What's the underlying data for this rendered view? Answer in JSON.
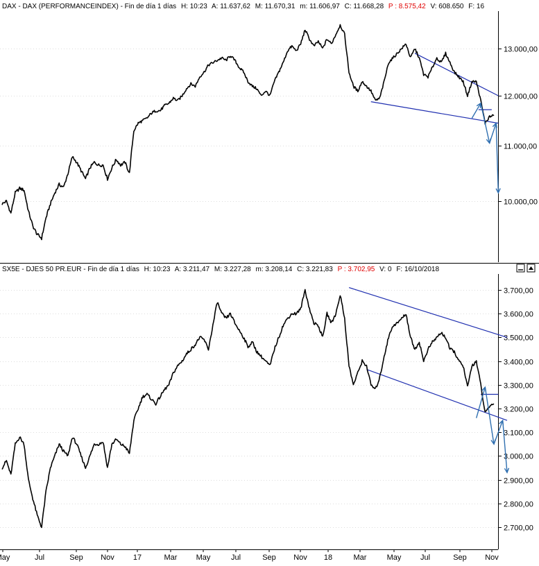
{
  "colors": {
    "price": "#000000",
    "trendline": "#1f2fb0",
    "projection": "#2f6fb0",
    "header_p": "#e00000",
    "grid": "#dcdcdc",
    "axis": "#000000"
  },
  "x_axis": {
    "labels": [
      "May",
      "Jul",
      "Sep",
      "Nov",
      "17",
      "Mar",
      "May",
      "Jul",
      "Sep",
      "Nov",
      "18",
      "Mar",
      "May",
      "Jul",
      "Sep",
      "Nov"
    ]
  },
  "panels": [
    {
      "id": "dax",
      "header": {
        "name": "DAX - DAX (PERFORMANCEINDEX) - Fin de día 1 días",
        "h": "H: 10:23",
        "a": "A: 11.637,62",
        "m_high": "M: 11.670,31",
        "m_low": "m: 11.606,97",
        "c": "C: 11.668,28",
        "p": "P : 8.575,42",
        "v": "V: 608.650",
        "f": "F: 16"
      },
      "window_buttons": [],
      "chart_data": {
        "type": "line",
        "ylim": [
          8950,
          13650
        ],
        "yticks": [
          {
            "value": 13000,
            "label": "13.000,00"
          },
          {
            "value": 12000,
            "label": "12.000,00"
          },
          {
            "value": 11000,
            "label": "11.000,00"
          },
          {
            "value": 10000,
            "label": "10.000,00"
          }
        ],
        "series": [
          {
            "values": [
              9950,
              10000,
              9780,
              10150,
              10230,
              10200,
              9820,
              9550,
              9400,
              9330,
              9700,
              9950,
              10150,
              10300,
              10250,
              10500,
              10800,
              10700,
              10550,
              10400,
              10600,
              10700,
              10650,
              10650,
              10400,
              10600,
              10750,
              10650,
              10700,
              10500,
              11300,
              11450,
              11500,
              11550,
              11650,
              11700,
              11700,
              11800,
              11850,
              11950,
              11900,
              12000,
              12150,
              12250,
              12200,
              12400,
              12500,
              12650,
              12700,
              12750,
              12800,
              12750,
              12850,
              12750,
              12600,
              12500,
              12300,
              12200,
              12150,
              12000,
              12100,
              12000,
              12300,
              12500,
              12700,
              12950,
              13050,
              12950,
              13100,
              13400,
              13200,
              13050,
              13150,
              13000,
              13200,
              13100,
              13300,
              13500,
              13300,
              12500,
              12200,
              12100,
              12300,
              12200,
              12100,
              11900,
              11950,
              12300,
              12700,
              12800,
              12900,
              13000,
              13100,
              12800,
              13000,
              12800,
              12450,
              12400,
              12600,
              12800,
              12700,
              12900,
              12700,
              12500,
              12400,
              12300,
              12000,
              12300,
              12300,
              11900,
              11450,
              11580,
              11600
            ]
          }
        ],
        "trendlines": [
          {
            "points": [
              {
                "x": 84,
                "y": 11880
              },
              {
                "x": 113,
                "y": 11450
              }
            ],
            "style": "support"
          },
          {
            "points": [
              {
                "x": 94,
                "y": 12900
              },
              {
                "x": 113,
                "y": 12000
              }
            ],
            "style": "resistance"
          },
          {
            "points": [
              {
                "x": 108.5,
                "y": 11720
              },
              {
                "x": 111.5,
                "y": 11720
              }
            ],
            "style": "resistance"
          }
        ],
        "projections": [
          {
            "points": [
              {
                "x": 107,
                "y": 11550
              },
              {
                "x": 109,
                "y": 11850
              },
              {
                "x": 111,
                "y": 11050
              },
              {
                "x": 112.5,
                "y": 11450
              },
              {
                "x": 113,
                "y": 10150
              }
            ]
          }
        ]
      }
    },
    {
      "id": "sx5e",
      "header": {
        "name": "SX5E - DJES 50 PR.EUR - Fin de día 1 días",
        "h": "H: 10:23",
        "a": "A: 3.211,47",
        "m_high": "M: 3.227,28",
        "m_low": "m: 3.208,14",
        "c": "C: 3.221,83",
        "p": "P : 3.702,95",
        "v": "V: 0",
        "f": "F: 16/10/2018"
      },
      "window_buttons": [],
      "chart_data": {
        "type": "line",
        "ylim": [
          2680,
          3750
        ],
        "yticks": [
          {
            "value": 3700,
            "label": "3.700,00"
          },
          {
            "value": 3600,
            "label": "3.600,00"
          },
          {
            "value": 3500,
            "label": "3.500,00"
          },
          {
            "value": 3400,
            "label": "3.400,00"
          },
          {
            "value": 3300,
            "label": "3.300,00"
          },
          {
            "value": 3200,
            "label": "3.200,00"
          },
          {
            "value": 3100,
            "label": "3.100,00"
          },
          {
            "value": 3000,
            "label": "3.000,00"
          },
          {
            "value": 2900,
            "label": "2.900,00"
          },
          {
            "value": 2800,
            "label": "2.800,00"
          },
          {
            "value": 2700,
            "label": "2.700,00"
          }
        ],
        "series": [
          {
            "values": [
              2950,
              2980,
              2920,
              3050,
              3080,
              3050,
              2900,
              2820,
              2750,
              2700,
              2850,
              2950,
              3000,
              3050,
              3020,
              3000,
              3080,
              3050,
              3000,
              2950,
              3000,
              3050,
              3050,
              3060,
              2950,
              3050,
              3070,
              3050,
              3040,
              3010,
              3150,
              3200,
              3250,
              3260,
              3240,
              3220,
              3250,
              3280,
              3300,
              3350,
              3380,
              3400,
              3430,
              3450,
              3470,
              3500,
              3490,
              3450,
              3550,
              3650,
              3600,
              3580,
              3600,
              3560,
              3530,
              3500,
              3460,
              3480,
              3440,
              3420,
              3400,
              3380,
              3450,
              3500,
              3550,
              3580,
              3600,
              3600,
              3620,
              3700,
              3620,
              3560,
              3550,
              3500,
              3600,
              3560,
              3600,
              3680,
              3580,
              3380,
              3300,
              3350,
              3400,
              3380,
              3300,
              3280,
              3330,
              3420,
              3500,
              3550,
              3560,
              3580,
              3600,
              3500,
              3450,
              3480,
              3400,
              3450,
              3480,
              3500,
              3520,
              3500,
              3450,
              3440,
              3400,
              3380,
              3290,
              3380,
              3400,
              3300,
              3180,
              3210,
              3220
            ]
          }
        ],
        "trendlines": [
          {
            "points": [
              {
                "x": 79,
                "y": 3710
              },
              {
                "x": 115,
                "y": 3500
              }
            ],
            "style": "resistance"
          },
          {
            "points": [
              {
                "x": 83,
                "y": 3365
              },
              {
                "x": 115,
                "y": 3150
              }
            ],
            "style": "support"
          },
          {
            "points": [
              {
                "x": 109,
                "y": 3260
              },
              {
                "x": 113,
                "y": 3260
              }
            ],
            "style": "resistance"
          }
        ],
        "projections": [
          {
            "points": [
              {
                "x": 108,
                "y": 3160
              },
              {
                "x": 110,
                "y": 3290
              },
              {
                "x": 112,
                "y": 3050
              },
              {
                "x": 114,
                "y": 3150
              },
              {
                "x": 115,
                "y": 2930
              }
            ]
          }
        ]
      }
    }
  ]
}
